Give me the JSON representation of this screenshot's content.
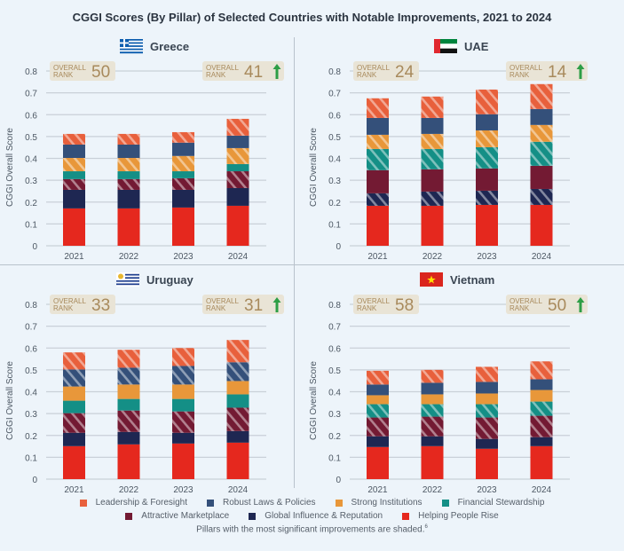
{
  "title": "CGGI Scores (By Pillar) of Selected Countries with Notable Improvements, 2021 to 2024",
  "colors": {
    "leadership": "#E8603C",
    "robust": "#34507A",
    "strong": "#E8973A",
    "financial": "#148F86",
    "attractive": "#731A33",
    "global": "#1E2752",
    "helping": "#E5281E",
    "rank_bg": "#E9E4D6",
    "rank_text": "#A88A5C",
    "arrow": "#2E9E46",
    "grid": "#C9D0D8"
  },
  "chart_data": [
    {
      "type": "bar",
      "stacked": true,
      "country": "Greece",
      "flag": "greece-flag",
      "rank_start_label": "OVERALL RANK",
      "rank_start": "50",
      "rank_end_label": "OVERALL RANK",
      "rank_end": "41",
      "rank_improved": true,
      "ylabel": "CGGI Overall Score",
      "ylim": [
        0,
        0.8
      ],
      "yticks": [
        "0",
        "0.1",
        "0.2",
        "0.3",
        "0.4",
        "0.5",
        "0.6",
        "0.7",
        "0.8"
      ],
      "categories": [
        "2021",
        "2022",
        "2023",
        "2024"
      ],
      "shaded": [
        "leadership",
        "strong",
        "attractive"
      ],
      "series": [
        {
          "key": "helping",
          "name": "Helping People Rise",
          "values": [
            0.171,
            0.171,
            0.175,
            0.183
          ]
        },
        {
          "key": "global",
          "name": "Global Influence & Reputation",
          "values": [
            0.085,
            0.085,
            0.081,
            0.081
          ]
        },
        {
          "key": "attractive",
          "name": "Attractive Marketplace",
          "values": [
            0.049,
            0.049,
            0.053,
            0.077
          ]
        },
        {
          "key": "financial",
          "name": "Financial Stewardship",
          "values": [
            0.036,
            0.036,
            0.032,
            0.033
          ]
        },
        {
          "key": "strong",
          "name": "Strong Institutions",
          "values": [
            0.061,
            0.061,
            0.07,
            0.073
          ]
        },
        {
          "key": "robust",
          "name": "Robust Laws & Policies",
          "values": [
            0.061,
            0.061,
            0.061,
            0.057
          ]
        },
        {
          "key": "leadership",
          "name": "Leadership & Foresight",
          "values": [
            0.049,
            0.049,
            0.048,
            0.077
          ]
        }
      ]
    },
    {
      "type": "bar",
      "stacked": true,
      "country": "UAE",
      "flag": "uae-flag",
      "rank_start_label": "OVERALL RANK",
      "rank_start": "24",
      "rank_end_label": "OVERALL RANK",
      "rank_end": "14",
      "rank_improved": true,
      "ylabel": "CGGI Overall Score",
      "ylim": [
        0,
        0.8
      ],
      "yticks": [
        "0",
        "0.1",
        "0.2",
        "0.3",
        "0.4",
        "0.5",
        "0.6",
        "0.7",
        "0.8"
      ],
      "categories": [
        "2021",
        "2022",
        "2023",
        "2024"
      ],
      "shaded": [
        "leadership",
        "strong",
        "financial",
        "global"
      ],
      "series": [
        {
          "key": "helping",
          "name": "Helping People Rise",
          "values": [
            0.183,
            0.183,
            0.187,
            0.187
          ]
        },
        {
          "key": "global",
          "name": "Global Influence & Reputation",
          "values": [
            0.057,
            0.065,
            0.065,
            0.073
          ]
        },
        {
          "key": "attractive",
          "name": "Attractive Marketplace",
          "values": [
            0.106,
            0.102,
            0.102,
            0.106
          ]
        },
        {
          "key": "financial",
          "name": "Financial Stewardship",
          "values": [
            0.097,
            0.093,
            0.097,
            0.11
          ]
        },
        {
          "key": "strong",
          "name": "Strong Institutions",
          "values": [
            0.065,
            0.069,
            0.077,
            0.077
          ]
        },
        {
          "key": "robust",
          "name": "Robust Laws & Policies",
          "values": [
            0.077,
            0.073,
            0.074,
            0.073
          ]
        },
        {
          "key": "leadership",
          "name": "Leadership & Foresight",
          "values": [
            0.09,
            0.098,
            0.113,
            0.114
          ]
        }
      ]
    },
    {
      "type": "bar",
      "stacked": true,
      "country": "Uruguay",
      "flag": "uruguay-flag",
      "rank_start_label": "OVERALL RANK",
      "rank_start": "33",
      "rank_end_label": "OVERALL RANK",
      "rank_end": "31",
      "rank_improved": true,
      "ylabel": "CGGI Overall Score",
      "ylim": [
        0,
        0.8
      ],
      "yticks": [
        "0",
        "0.1",
        "0.2",
        "0.3",
        "0.4",
        "0.5",
        "0.6",
        "0.7",
        "0.8"
      ],
      "categories": [
        "2021",
        "2022",
        "2023",
        "2024"
      ],
      "shaded": [
        "leadership",
        "robust",
        "attractive"
      ],
      "series": [
        {
          "key": "helping",
          "name": "Helping People Rise",
          "values": [
            0.151,
            0.159,
            0.163,
            0.167
          ]
        },
        {
          "key": "global",
          "name": "Global Influence & Reputation",
          "values": [
            0.061,
            0.057,
            0.049,
            0.053
          ]
        },
        {
          "key": "attractive",
          "name": "Attractive Marketplace",
          "values": [
            0.09,
            0.098,
            0.098,
            0.107
          ]
        },
        {
          "key": "financial",
          "name": "Financial Stewardship",
          "values": [
            0.057,
            0.053,
            0.057,
            0.061
          ]
        },
        {
          "key": "strong",
          "name": "Strong Institutions",
          "values": [
            0.065,
            0.066,
            0.066,
            0.061
          ]
        },
        {
          "key": "robust",
          "name": "Robust Laws & Policies",
          "values": [
            0.078,
            0.077,
            0.085,
            0.086
          ]
        },
        {
          "key": "leadership",
          "name": "Leadership & Foresight",
          "values": [
            0.078,
            0.082,
            0.082,
            0.102
          ]
        }
      ]
    },
    {
      "type": "bar",
      "stacked": true,
      "country": "Vietnam",
      "flag": "vietnam-flag",
      "rank_start_label": "OVERALL RANK",
      "rank_start": "58",
      "rank_end_label": "OVERALL RANK",
      "rank_end": "50",
      "rank_improved": true,
      "ylabel": "CGGI Overall Score",
      "ylim": [
        0,
        0.8
      ],
      "yticks": [
        "0",
        "0.1",
        "0.2",
        "0.3",
        "0.4",
        "0.5",
        "0.6",
        "0.7",
        "0.8"
      ],
      "categories": [
        "2021",
        "2022",
        "2023",
        "2024"
      ],
      "shaded": [
        "leadership",
        "financial",
        "attractive"
      ],
      "series": [
        {
          "key": "helping",
          "name": "Helping People Rise",
          "values": [
            0.147,
            0.151,
            0.139,
            0.151
          ]
        },
        {
          "key": "global",
          "name": "Global Influence & Reputation",
          "values": [
            0.049,
            0.045,
            0.045,
            0.041
          ]
        },
        {
          "key": "attractive",
          "name": "Attractive Marketplace",
          "values": [
            0.086,
            0.09,
            0.098,
            0.098
          ]
        },
        {
          "key": "financial",
          "name": "Financial Stewardship",
          "values": [
            0.061,
            0.057,
            0.061,
            0.065
          ]
        },
        {
          "key": "strong",
          "name": "Strong Institutions",
          "values": [
            0.041,
            0.045,
            0.049,
            0.053
          ]
        },
        {
          "key": "robust",
          "name": "Robust Laws & Policies",
          "values": [
            0.049,
            0.053,
            0.053,
            0.049
          ]
        },
        {
          "key": "leadership",
          "name": "Leadership & Foresight",
          "values": [
            0.063,
            0.059,
            0.069,
            0.082
          ]
        }
      ]
    }
  ],
  "legend": {
    "row1": [
      {
        "key": "leadership",
        "label": "Leadership & Foresight"
      },
      {
        "key": "robust",
        "label": "Robust Laws & Policies"
      },
      {
        "key": "strong",
        "label": "Strong Institutions"
      },
      {
        "key": "financial",
        "label": "Financial Stewardship"
      }
    ],
    "row2": [
      {
        "key": "attractive",
        "label": "Attractive Marketplace"
      },
      {
        "key": "global",
        "label": "Global Influence & Reputation"
      },
      {
        "key": "helping",
        "label": "Helping People Rise"
      }
    ]
  },
  "footnote": "Pillars with the most significant improvements are shaded.",
  "footnote_ref": "6"
}
